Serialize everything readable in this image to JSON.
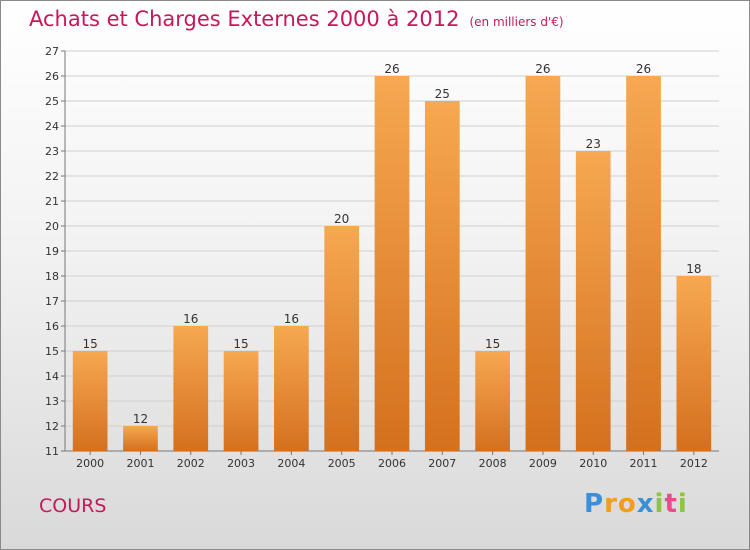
{
  "chart_data": {
    "type": "bar",
    "title": "Achats et Charges Externes 2000 à 2012",
    "subtitle": "(en milliers d'€)",
    "categories": [
      "2000",
      "2001",
      "2002",
      "2003",
      "2004",
      "2005",
      "2006",
      "2007",
      "2008",
      "2009",
      "2010",
      "2011",
      "2012"
    ],
    "values": [
      15,
      12,
      16,
      15,
      16,
      20,
      26,
      25,
      15,
      26,
      23,
      26,
      18
    ],
    "ylim": [
      11,
      27
    ],
    "yticks": [
      11,
      12,
      13,
      14,
      15,
      16,
      17,
      18,
      19,
      20,
      21,
      22,
      23,
      24,
      25,
      26,
      27
    ],
    "grid": true,
    "bar_color_top": "#f7a851",
    "bar_color_bottom": "#d4701e"
  },
  "commune": "COURS",
  "logo": {
    "letters": [
      "P",
      "r",
      "o",
      "x",
      "i",
      "t",
      "i"
    ],
    "colors": [
      "#3a8fd8",
      "#f39c1f",
      "#f39c1f",
      "#3a8fd8",
      "#8cc63f",
      "#e84c8b",
      "#8cc63f"
    ]
  }
}
